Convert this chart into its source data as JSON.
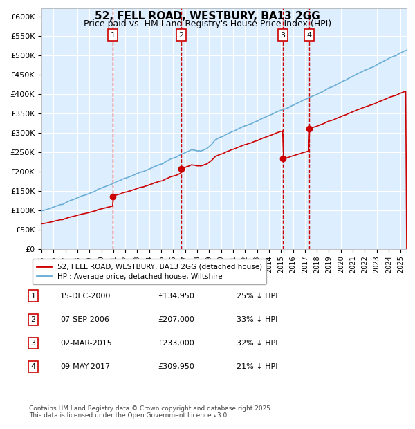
{
  "title": "52, FELL ROAD, WESTBURY, BA13 2GG",
  "subtitle": "Price paid vs. HM Land Registry's House Price Index (HPI)",
  "ylabel": "",
  "ylim": [
    0,
    620000
  ],
  "yticks": [
    0,
    50000,
    100000,
    150000,
    200000,
    250000,
    300000,
    350000,
    400000,
    450000,
    500000,
    550000,
    600000
  ],
  "ytick_labels": [
    "£0",
    "£50K",
    "£100K",
    "£150K",
    "£200K",
    "£250K",
    "£300K",
    "£350K",
    "£400K",
    "£450K",
    "£500K",
    "£550K",
    "£600K"
  ],
  "hpi_color": "#6baed6",
  "price_color": "#cc0000",
  "marker_color": "#cc0000",
  "bg_color": "#ddeeff",
  "grid_color": "#ffffff",
  "vline_color": "#cc0000",
  "box_color": "#cc0000",
  "sale_dates_num": [
    2000.958,
    2006.678,
    2015.167,
    2017.356
  ],
  "sale_prices": [
    134950,
    207000,
    233000,
    309950
  ],
  "sale_labels": [
    "1",
    "2",
    "3",
    "4"
  ],
  "legend_label_red": "52, FELL ROAD, WESTBURY, BA13 2GG (detached house)",
  "legend_label_blue": "HPI: Average price, detached house, Wiltshire",
  "table_rows": [
    [
      "1",
      "15-DEC-2000",
      "£134,950",
      "25% ↓ HPI"
    ],
    [
      "2",
      "07-SEP-2006",
      "£207,000",
      "33% ↓ HPI"
    ],
    [
      "3",
      "02-MAR-2015",
      "£233,000",
      "32% ↓ HPI"
    ],
    [
      "4",
      "09-MAY-2017",
      "£309,950",
      "21% ↓ HPI"
    ]
  ],
  "footer": "Contains HM Land Registry data © Crown copyright and database right 2025.\nThis data is licensed under the Open Government Licence v3.0."
}
